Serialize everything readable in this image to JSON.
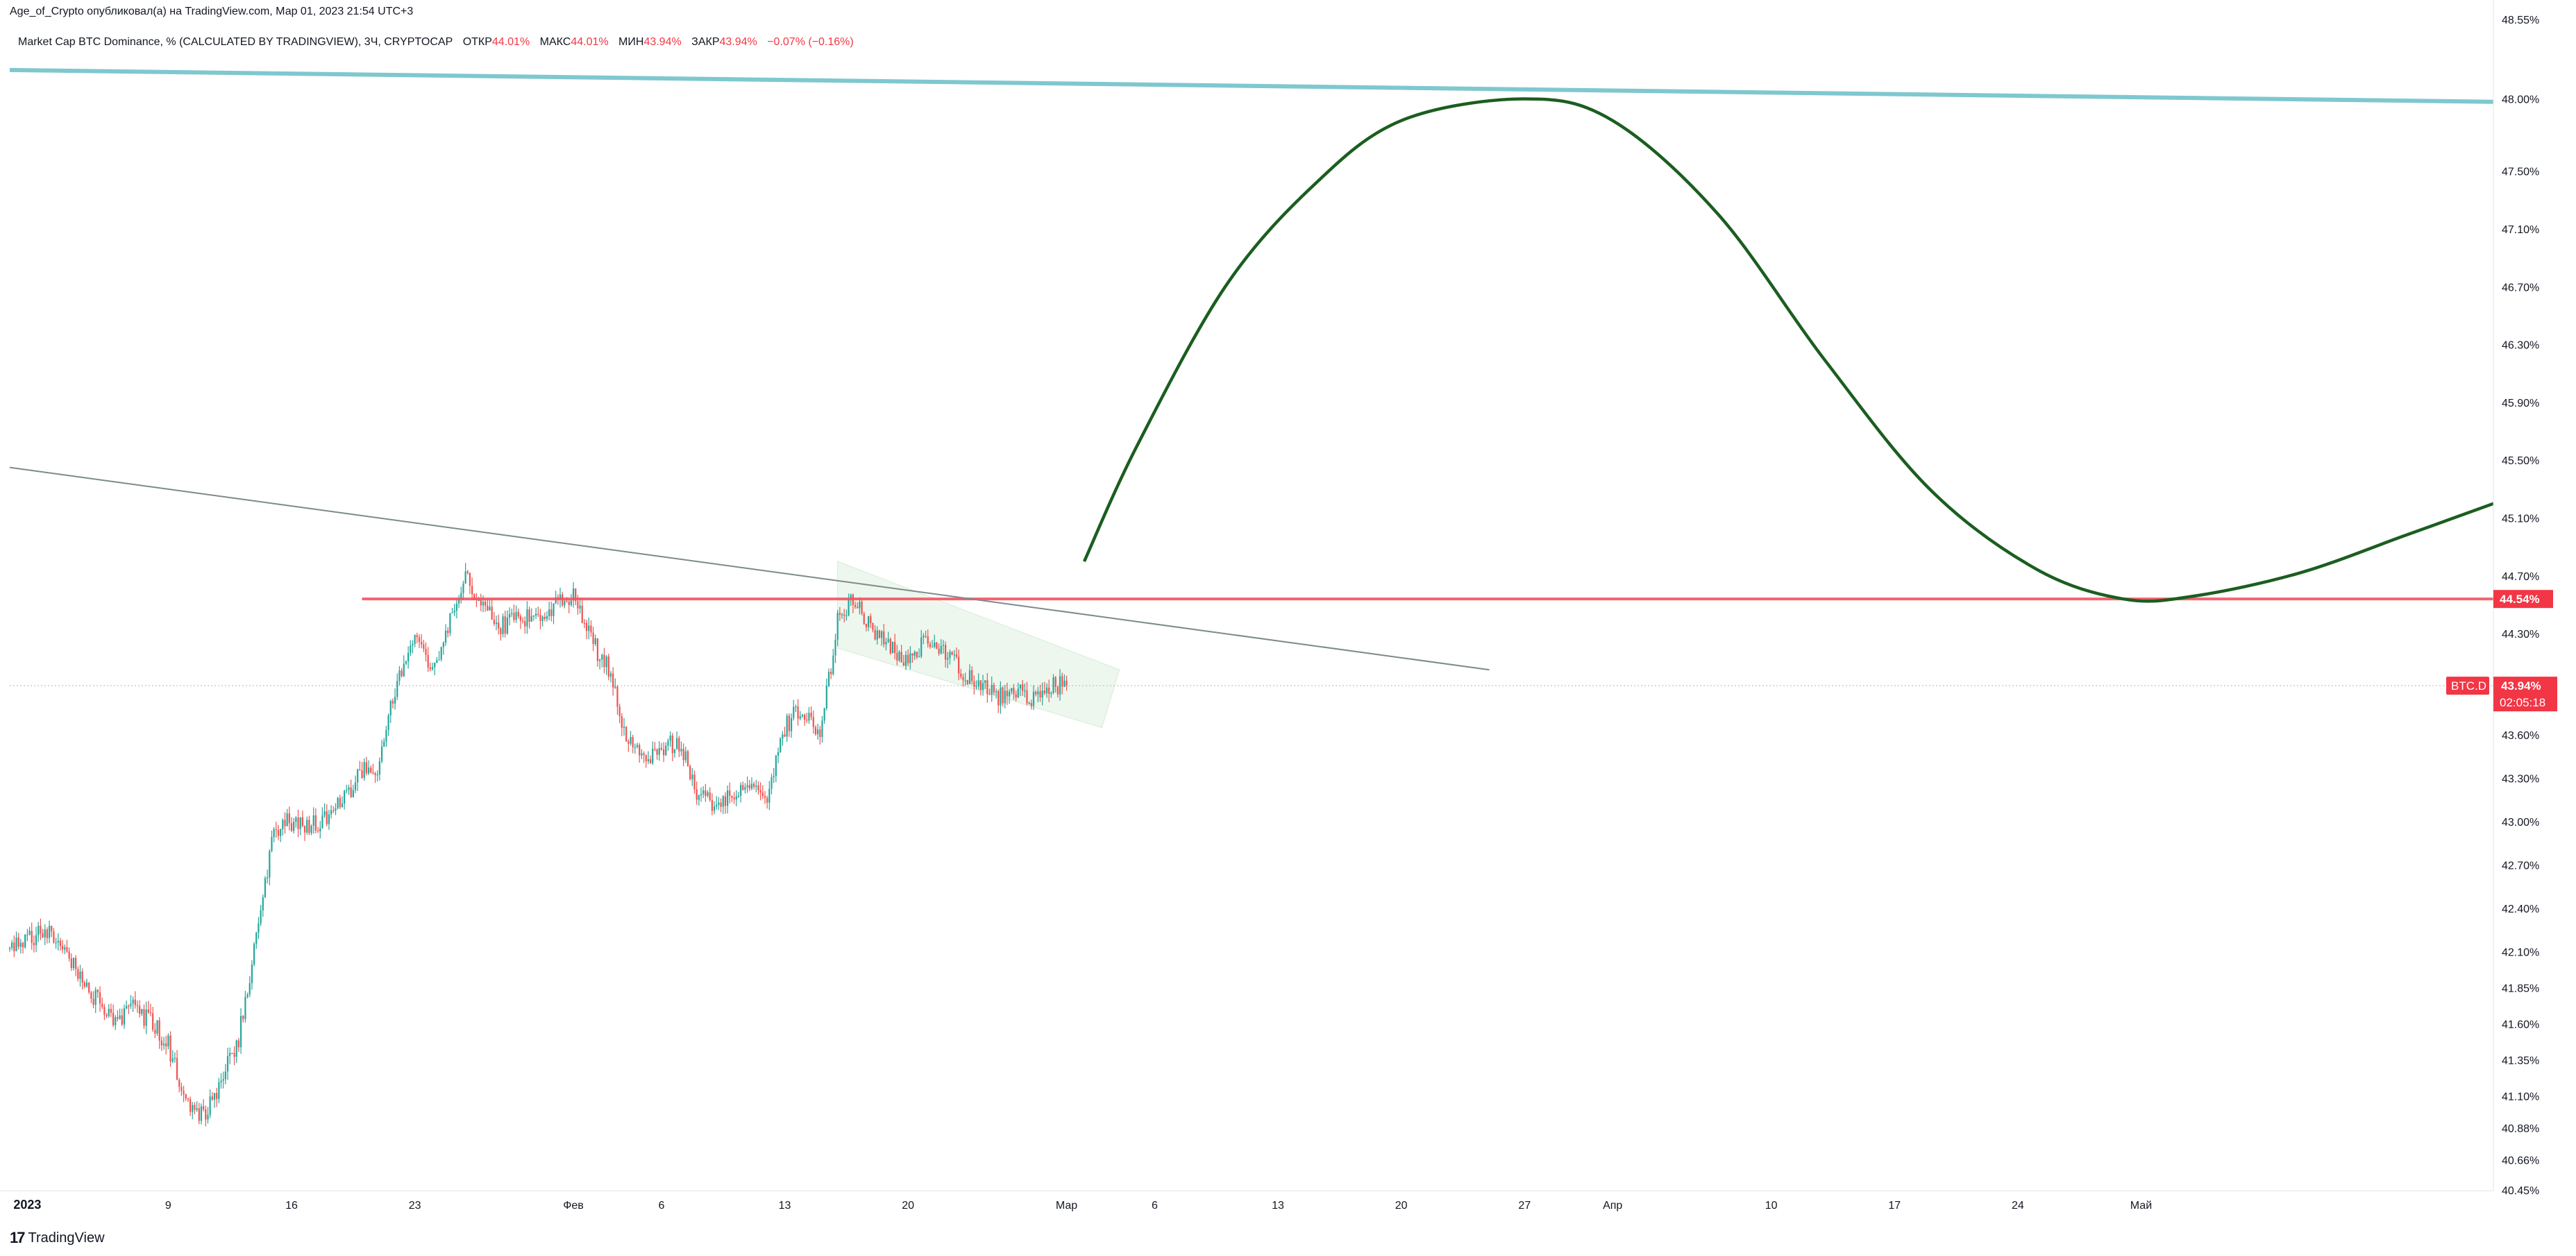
{
  "header": {
    "publisher_line": "Age_of_Crypto опубликовал(а) на TradingView.com, Мар 01, 2023 21:54 UTC+3"
  },
  "legend": {
    "symbol_desc": "Market Cap BTC Dominance, % (CALCULATED BY TRADINGVIEW), 3Ч, CRYPTOCAP",
    "open_label": "ОТКР",
    "open_value": "44.01%",
    "high_label": "МАКС",
    "high_value": "44.01%",
    "low_label": "МИН",
    "low_value": "43.94%",
    "close_label": "ЗАКР",
    "close_value": "43.94%",
    "change_value": "−0.07% (−0.16%)"
  },
  "footer": {
    "brand_logo": "17",
    "brand": "TradingView"
  },
  "colors": {
    "up": "#26a69a",
    "down": "#ef5350",
    "accent_red": "#f23645",
    "resistance": "#f7525f",
    "cyan_line": "#7ec8ce",
    "trend_gray": "#7d8a8a",
    "projection": "#1b5e20",
    "channel_fill": "#e8f5e9"
  },
  "chart_data": {
    "type": "candlestick",
    "symbol": "BTC.D",
    "interval": "3Ч",
    "y_unit": "%",
    "ylim": [
      40.45,
      48.55
    ],
    "yticks": [
      "48.55%",
      "48.00%",
      "47.50%",
      "47.10%",
      "46.70%",
      "46.30%",
      "45.90%",
      "45.50%",
      "45.10%",
      "44.70%",
      "44.30%",
      "43.60%",
      "43.30%",
      "43.00%",
      "42.70%",
      "42.40%",
      "42.10%",
      "41.85%",
      "41.60%",
      "41.35%",
      "41.10%",
      "40.88%",
      "40.66%",
      "40.45%"
    ],
    "xlim": [
      "2022-12-31",
      "2023-05-21"
    ],
    "xticks": [
      {
        "label": "2023",
        "date": "2023-01-01",
        "bold": true
      },
      {
        "label": "9",
        "date": "2023-01-09"
      },
      {
        "label": "16",
        "date": "2023-01-16"
      },
      {
        "label": "23",
        "date": "2023-01-23"
      },
      {
        "label": "Фев",
        "date": "2023-02-01"
      },
      {
        "label": "6",
        "date": "2023-02-06"
      },
      {
        "label": "13",
        "date": "2023-02-13"
      },
      {
        "label": "20",
        "date": "2023-02-20"
      },
      {
        "label": "Мар",
        "date": "2023-03-01"
      },
      {
        "label": "6",
        "date": "2023-03-06"
      },
      {
        "label": "13",
        "date": "2023-03-13"
      },
      {
        "label": "20",
        "date": "2023-03-20"
      },
      {
        "label": "27",
        "date": "2023-03-27"
      },
      {
        "label": "Апр",
        "date": "2023-04-01"
      },
      {
        "label": "10",
        "date": "2023-04-10"
      },
      {
        "label": "17",
        "date": "2023-04-17"
      },
      {
        "label": "24",
        "date": "2023-04-24"
      },
      {
        "label": "Май",
        "date": "2023-05-01"
      }
    ],
    "price_path": [
      [
        "2022-12-31",
        42.12
      ],
      [
        "2023-01-01",
        42.18
      ],
      [
        "2023-01-02",
        42.25
      ],
      [
        "2023-01-03",
        42.15
      ],
      [
        "2023-01-04",
        41.95
      ],
      [
        "2023-01-05",
        41.75
      ],
      [
        "2023-01-06",
        41.62
      ],
      [
        "2023-01-07",
        41.7
      ],
      [
        "2023-01-08",
        41.62
      ],
      [
        "2023-01-09",
        41.45
      ],
      [
        "2023-01-10",
        41.05
      ],
      [
        "2023-01-11",
        40.95
      ],
      [
        "2023-01-12",
        41.2
      ],
      [
        "2023-01-13",
        41.5
      ],
      [
        "2023-01-14",
        42.2
      ],
      [
        "2023-01-15",
        42.95
      ],
      [
        "2023-01-16",
        43.0
      ],
      [
        "2023-01-17",
        42.95
      ],
      [
        "2023-01-18",
        43.05
      ],
      [
        "2023-01-19",
        43.15
      ],
      [
        "2023-01-20",
        43.35
      ],
      [
        "2023-01-21",
        43.4
      ],
      [
        "2023-01-22",
        44.0
      ],
      [
        "2023-01-23",
        44.3
      ],
      [
        "2023-01-24",
        44.0
      ],
      [
        "2023-01-25",
        44.4
      ],
      [
        "2023-01-26",
        44.7
      ],
      [
        "2023-01-27",
        44.45
      ],
      [
        "2023-01-28",
        44.35
      ],
      [
        "2023-01-29",
        44.4
      ],
      [
        "2023-01-30",
        44.45
      ],
      [
        "2023-01-31",
        44.5
      ],
      [
        "2023-02-01",
        44.55
      ],
      [
        "2023-02-02",
        44.25
      ],
      [
        "2023-02-03",
        44.05
      ],
      [
        "2023-02-04",
        43.6
      ],
      [
        "2023-02-05",
        43.4
      ],
      [
        "2023-02-06",
        43.5
      ],
      [
        "2023-02-07",
        43.55
      ],
      [
        "2023-02-08",
        43.2
      ],
      [
        "2023-02-09",
        43.12
      ],
      [
        "2023-02-10",
        43.2
      ],
      [
        "2023-02-11",
        43.25
      ],
      [
        "2023-02-12",
        43.2
      ],
      [
        "2023-02-13",
        43.65
      ],
      [
        "2023-02-14",
        43.8
      ],
      [
        "2023-02-15",
        43.55
      ],
      [
        "2023-02-16",
        44.4
      ],
      [
        "2023-02-17",
        44.55
      ],
      [
        "2023-02-18",
        44.3
      ],
      [
        "2023-02-19",
        44.2
      ],
      [
        "2023-02-20",
        44.1
      ],
      [
        "2023-02-21",
        44.25
      ],
      [
        "2023-02-22",
        44.2
      ],
      [
        "2023-02-23",
        44.05
      ],
      [
        "2023-02-24",
        43.95
      ],
      [
        "2023-02-25",
        43.85
      ],
      [
        "2023-02-26",
        43.9
      ],
      [
        "2023-02-27",
        43.85
      ],
      [
        "2023-02-28",
        43.95
      ],
      [
        "2023-03-01",
        43.94
      ]
    ],
    "current_price": {
      "label": "BTC.D",
      "value": "43.94%",
      "countdown": "02:05:18"
    },
    "drawings": [
      {
        "type": "horizontal-ray",
        "name": "resistance",
        "price": 44.54,
        "from": "2023-01-20",
        "label": "44.54%"
      },
      {
        "type": "trendline",
        "name": "upper-cyan",
        "points": [
          [
            "2022-12-31",
            48.2
          ],
          [
            "2023-05-21",
            47.98
          ]
        ]
      },
      {
        "type": "trendline",
        "name": "descending-gray",
        "points": [
          [
            "2022-12-31",
            45.45
          ],
          [
            "2023-03-25",
            44.05
          ]
        ]
      },
      {
        "type": "parallel-channel",
        "name": "descending-channel",
        "points": [
          [
            "2023-02-16",
            44.8
          ],
          [
            "2023-03-04",
            44.05
          ],
          [
            "2023-03-03",
            43.65
          ],
          [
            "2023-02-16",
            44.2
          ]
        ]
      },
      {
        "type": "projection-curve",
        "name": "bullish-projection",
        "points": [
          [
            "2023-03-02",
            44.8
          ],
          [
            "2023-03-05",
            45.6
          ],
          [
            "2023-03-10",
            46.7
          ],
          [
            "2023-03-15",
            47.4
          ],
          [
            "2023-03-20",
            47.85
          ],
          [
            "2023-03-27",
            48.0
          ],
          [
            "2023-04-01",
            47.85
          ],
          [
            "2023-04-07",
            47.2
          ],
          [
            "2023-04-13",
            46.2
          ],
          [
            "2023-04-19",
            45.3
          ],
          [
            "2023-04-25",
            44.75
          ],
          [
            "2023-04-30",
            44.54
          ],
          [
            "2023-05-04",
            44.56
          ],
          [
            "2023-05-10",
            44.72
          ],
          [
            "2023-05-16",
            44.98
          ],
          [
            "2023-05-21",
            45.2
          ]
        ]
      }
    ]
  }
}
